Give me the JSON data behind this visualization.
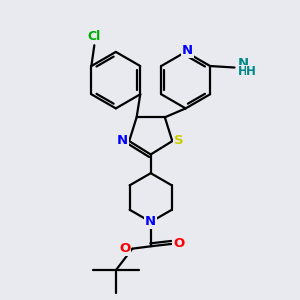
{
  "background_color": "#e8eaf0",
  "atom_colors": {
    "C": "#000000",
    "N": "#0000ff",
    "S": "#cccc00",
    "O": "#ff0000",
    "Cl": "#00aa00",
    "NH2_N": "#008888",
    "NH2_H": "#008888"
  },
  "line_color": "#000000",
  "line_width": 1.6,
  "figsize": [
    3.0,
    3.0
  ],
  "dpi": 100
}
